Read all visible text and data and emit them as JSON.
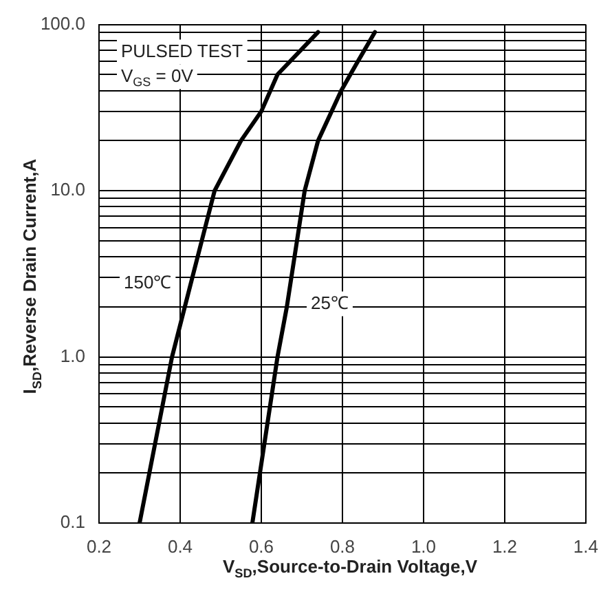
{
  "chart_data": {
    "type": "line",
    "xlabel": "V$_{SD}$,Source-to-Drain Voltage,V",
    "ylabel": "I$_{SD}$,Reverse Drain Current,A",
    "log": "y",
    "grid": true,
    "legend": false,
    "marker": "none",
    "line_style": "solid",
    "xlim": [
      0.2,
      1.4
    ],
    "xticks": [
      0.2,
      0.4,
      0.6,
      0.8,
      {
        "value": 1,
        "label": "1.0"
      },
      1.2,
      1.4
    ],
    "ylim": [
      0.1,
      100
    ],
    "yticks": [
      {
        "value": 0.1,
        "label": "0.1"
      },
      {
        "value": 0.2,
        "label": null
      },
      {
        "value": 0.3,
        "label": null
      },
      {
        "value": 0.4,
        "label": null
      },
      {
        "value": 0.5,
        "label": null
      },
      {
        "value": 0.6,
        "label": null
      },
      {
        "value": 0.7,
        "label": null
      },
      {
        "value": 0.8,
        "label": null
      },
      {
        "value": 0.9,
        "label": null
      },
      {
        "value": 1,
        "label": "1.0"
      },
      {
        "value": 2,
        "label": null
      },
      {
        "value": 3,
        "label": null
      },
      {
        "value": 4,
        "label": null
      },
      {
        "value": 5,
        "label": null
      },
      {
        "value": 6,
        "label": null
      },
      {
        "value": 7,
        "label": null
      },
      {
        "value": 8,
        "label": null
      },
      {
        "value": 9,
        "label": null
      },
      {
        "value": 10,
        "label": "10.0"
      },
      {
        "value": 20,
        "label": null
      },
      {
        "value": 30,
        "label": null
      },
      {
        "value": 40,
        "label": null
      },
      {
        "value": 50,
        "label": null
      },
      {
        "value": 60,
        "label": null
      },
      {
        "value": 70,
        "label": null
      },
      {
        "value": 80,
        "label": null
      },
      {
        "value": 90,
        "label": null
      },
      {
        "value": 100,
        "label": "100.0"
      }
    ],
    "series": [
      {
        "color": "#000000",
        "x": [
          0.3,
          0.38,
          0.43,
          0.485,
          0.55,
          0.6,
          0.64,
          0.74
        ],
        "values": [
          0.1,
          1,
          3,
          10,
          20,
          30,
          50,
          90
        ]
      },
      {
        "color": "#000000",
        "x": [
          0.578,
          0.64,
          0.663,
          0.707,
          0.74,
          0.797,
          0.838,
          0.88
        ],
        "values": [
          0.1,
          1,
          2,
          10,
          20,
          40,
          60,
          90
        ]
      }
    ],
    "annotations": [
      "PULSED TEST",
      "V$_{GS}$ = 0V",
      "150℃",
      "25℃"
    ]
  }
}
